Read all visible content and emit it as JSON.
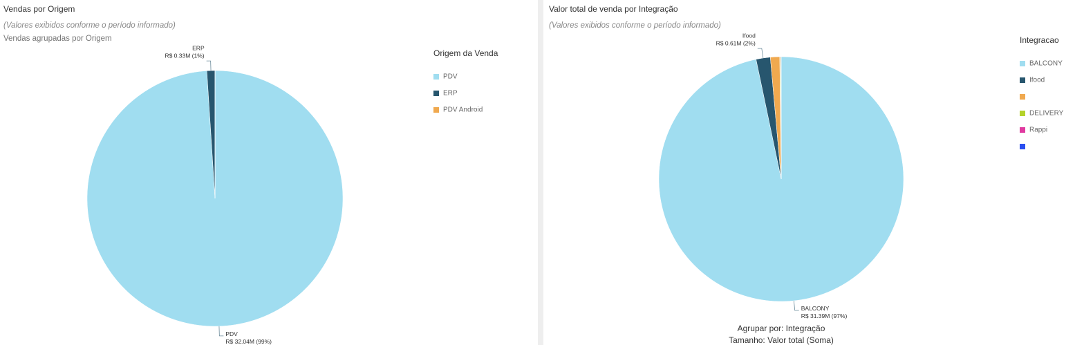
{
  "chart_data": [
    {
      "type": "pie",
      "title": "Vendas por Origem",
      "subtitle": "(Valores exibidos conforme o período informado)",
      "description": "Vendas agrupadas por Origem",
      "legend_title": "Origem da Venda",
      "categories": [
        "PDV",
        "ERP",
        "PDV Android"
      ],
      "values": [
        32.04,
        0.33,
        0
      ],
      "value_labels": [
        "R$ 32.04M (99%)",
        "R$ 0.33M (1%)",
        null
      ],
      "colors": [
        "#a0ddf0",
        "#27566e",
        "#f0a94f"
      ]
    },
    {
      "type": "pie",
      "title": "Valor total de venda por Integração",
      "subtitle": "(Valores exibidos conforme o período informado)",
      "legend_title": "Integracao",
      "categories": [
        "BALCONY",
        "Ifood",
        null,
        "DELIVERY",
        "Rappi",
        null
      ],
      "values": [
        31.39,
        0.61,
        0.4,
        0.03,
        0.02,
        0.01
      ],
      "value_labels": [
        "R$ 31.39M (97%)",
        "R$ 0.61M (2%)",
        null,
        null,
        null,
        null
      ],
      "colors": [
        "#a0ddf0",
        "#27566e",
        "#f0a94f",
        "#b4d22a",
        "#e03aa0",
        "#2a4ef0"
      ],
      "annotations": [
        "Agrupar por: Integração",
        "Tamanho: Valor total (Soma)"
      ]
    }
  ]
}
